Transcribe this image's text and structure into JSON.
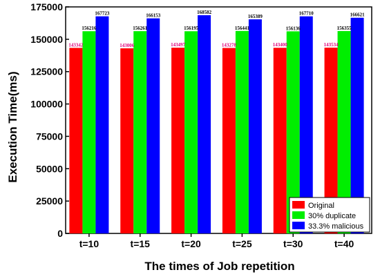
{
  "chart_data": {
    "type": "bar",
    "categories": [
      "t=10",
      "t=15",
      "t=20",
      "t=25",
      "t=30",
      "t=40"
    ],
    "series": [
      {
        "name": "Original",
        "values": [
          143342,
          143006,
          143497,
          143278,
          143400,
          143534
        ],
        "color": "#ff0000",
        "label_color": "#e0007a"
      },
      {
        "name": "30% duplicate",
        "values": [
          156216,
          156261,
          156195,
          156441,
          156136,
          156355
        ],
        "color": "#00ee00",
        "label_color": "#000000"
      },
      {
        "name": "33.3% malicious",
        "values": [
          167723,
          166153,
          168582,
          165389,
          167710,
          166621
        ],
        "color": "#0000ff",
        "label_color": "#000000"
      }
    ],
    "xlabel": "The times of Job repetition",
    "ylabel": "Execution Time(ms)",
    "ylim": [
      0,
      175000
    ],
    "yticks": [
      0,
      25000,
      50000,
      75000,
      100000,
      125000,
      150000,
      175000
    ],
    "legend_position": "bottom-right",
    "grid": false
  }
}
